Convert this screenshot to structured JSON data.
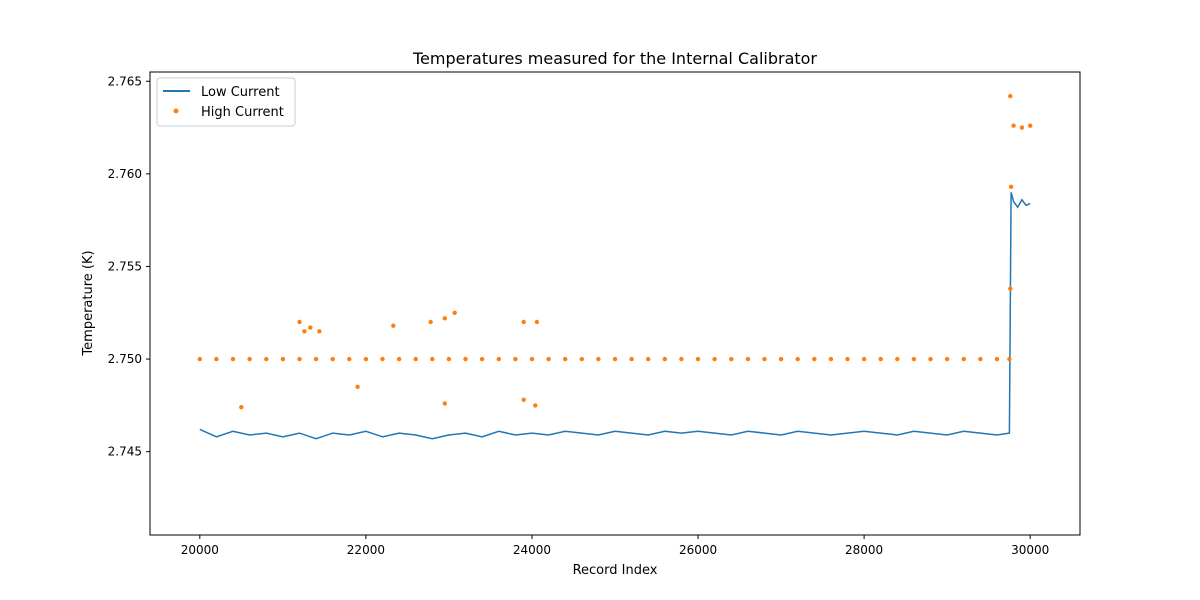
{
  "chart_data": {
    "type": "line",
    "title": "Temperatures measured for the Internal Calibrator",
    "xlabel": "Record Index",
    "ylabel": "Temperature (K)",
    "xlim": [
      19400,
      30600
    ],
    "ylim": [
      2.7405,
      2.7655
    ],
    "x_ticks": [
      20000,
      22000,
      24000,
      26000,
      28000,
      30000
    ],
    "y_ticks": [
      2.745,
      2.75,
      2.755,
      2.76,
      2.765
    ],
    "y_tick_labels": [
      "2.745",
      "2.750",
      "2.755",
      "2.760",
      "2.765"
    ],
    "grid": false,
    "legend_position": "top-left",
    "series": [
      {
        "name": "Low Current",
        "kind": "line",
        "color": "#1f77b4",
        "points": [
          [
            20000,
            2.7462
          ],
          [
            20200,
            2.7458
          ],
          [
            20400,
            2.7461
          ],
          [
            20600,
            2.7459
          ],
          [
            20800,
            2.746
          ],
          [
            21000,
            2.7458
          ],
          [
            21200,
            2.746
          ],
          [
            21400,
            2.7457
          ],
          [
            21600,
            2.746
          ],
          [
            21800,
            2.7459
          ],
          [
            22000,
            2.7461
          ],
          [
            22200,
            2.7458
          ],
          [
            22400,
            2.746
          ],
          [
            22600,
            2.7459
          ],
          [
            22800,
            2.7457
          ],
          [
            23000,
            2.7459
          ],
          [
            23200,
            2.746
          ],
          [
            23400,
            2.7458
          ],
          [
            23600,
            2.7461
          ],
          [
            23800,
            2.7459
          ],
          [
            24000,
            2.746
          ],
          [
            24200,
            2.7459
          ],
          [
            24400,
            2.7461
          ],
          [
            24600,
            2.746
          ],
          [
            24800,
            2.7459
          ],
          [
            25000,
            2.7461
          ],
          [
            25200,
            2.746
          ],
          [
            25400,
            2.7459
          ],
          [
            25600,
            2.7461
          ],
          [
            25800,
            2.746
          ],
          [
            26000,
            2.7461
          ],
          [
            26200,
            2.746
          ],
          [
            26400,
            2.7459
          ],
          [
            26600,
            2.7461
          ],
          [
            26800,
            2.746
          ],
          [
            27000,
            2.7459
          ],
          [
            27200,
            2.7461
          ],
          [
            27400,
            2.746
          ],
          [
            27600,
            2.7459
          ],
          [
            27800,
            2.746
          ],
          [
            28000,
            2.7461
          ],
          [
            28200,
            2.746
          ],
          [
            28400,
            2.7459
          ],
          [
            28600,
            2.7461
          ],
          [
            28800,
            2.746
          ],
          [
            29000,
            2.7459
          ],
          [
            29200,
            2.7461
          ],
          [
            29400,
            2.746
          ],
          [
            29600,
            2.7459
          ],
          [
            29750,
            2.746
          ],
          [
            29770,
            2.759
          ],
          [
            29800,
            2.7585
          ],
          [
            29850,
            2.7582
          ],
          [
            29900,
            2.7586
          ],
          [
            29950,
            2.7583
          ],
          [
            30000,
            2.7584
          ]
        ]
      },
      {
        "name": "High Current",
        "kind": "scatter",
        "color": "#ff7f0e",
        "points": [
          [
            20000,
            2.75
          ],
          [
            20200,
            2.75
          ],
          [
            20400,
            2.75
          ],
          [
            20600,
            2.75
          ],
          [
            20800,
            2.75
          ],
          [
            21000,
            2.75
          ],
          [
            21200,
            2.75
          ],
          [
            21400,
            2.75
          ],
          [
            21600,
            2.75
          ],
          [
            21800,
            2.75
          ],
          [
            22000,
            2.75
          ],
          [
            22200,
            2.75
          ],
          [
            22400,
            2.75
          ],
          [
            22600,
            2.75
          ],
          [
            22800,
            2.75
          ],
          [
            23000,
            2.75
          ],
          [
            23200,
            2.75
          ],
          [
            23400,
            2.75
          ],
          [
            23600,
            2.75
          ],
          [
            23800,
            2.75
          ],
          [
            24000,
            2.75
          ],
          [
            24200,
            2.75
          ],
          [
            24400,
            2.75
          ],
          [
            24600,
            2.75
          ],
          [
            24800,
            2.75
          ],
          [
            25000,
            2.75
          ],
          [
            25200,
            2.75
          ],
          [
            25400,
            2.75
          ],
          [
            25600,
            2.75
          ],
          [
            25800,
            2.75
          ],
          [
            26000,
            2.75
          ],
          [
            26200,
            2.75
          ],
          [
            26400,
            2.75
          ],
          [
            26600,
            2.75
          ],
          [
            26800,
            2.75
          ],
          [
            27000,
            2.75
          ],
          [
            27200,
            2.75
          ],
          [
            27400,
            2.75
          ],
          [
            27600,
            2.75
          ],
          [
            27800,
            2.75
          ],
          [
            28000,
            2.75
          ],
          [
            28200,
            2.75
          ],
          [
            28400,
            2.75
          ],
          [
            28600,
            2.75
          ],
          [
            28800,
            2.75
          ],
          [
            29000,
            2.75
          ],
          [
            29200,
            2.75
          ],
          [
            29400,
            2.75
          ],
          [
            29600,
            2.75
          ],
          [
            29750,
            2.75
          ],
          [
            29760,
            2.7538
          ],
          [
            29770,
            2.7593
          ],
          [
            29760,
            2.7642
          ],
          [
            29800,
            2.7626
          ],
          [
            29900,
            2.7625
          ],
          [
            30000,
            2.7626
          ],
          [
            20500,
            2.7474
          ],
          [
            21200,
            2.752
          ],
          [
            21260,
            2.7515
          ],
          [
            21330,
            2.7517
          ],
          [
            21440,
            2.7515
          ],
          [
            21900,
            2.7485
          ],
          [
            22330,
            2.7518
          ],
          [
            22780,
            2.752
          ],
          [
            22950,
            2.7522
          ],
          [
            23070,
            2.7525
          ],
          [
            22950,
            2.7476
          ],
          [
            23900,
            2.752
          ],
          [
            24060,
            2.752
          ],
          [
            23900,
            2.7478
          ],
          [
            24040,
            2.7475
          ]
        ]
      }
    ]
  }
}
